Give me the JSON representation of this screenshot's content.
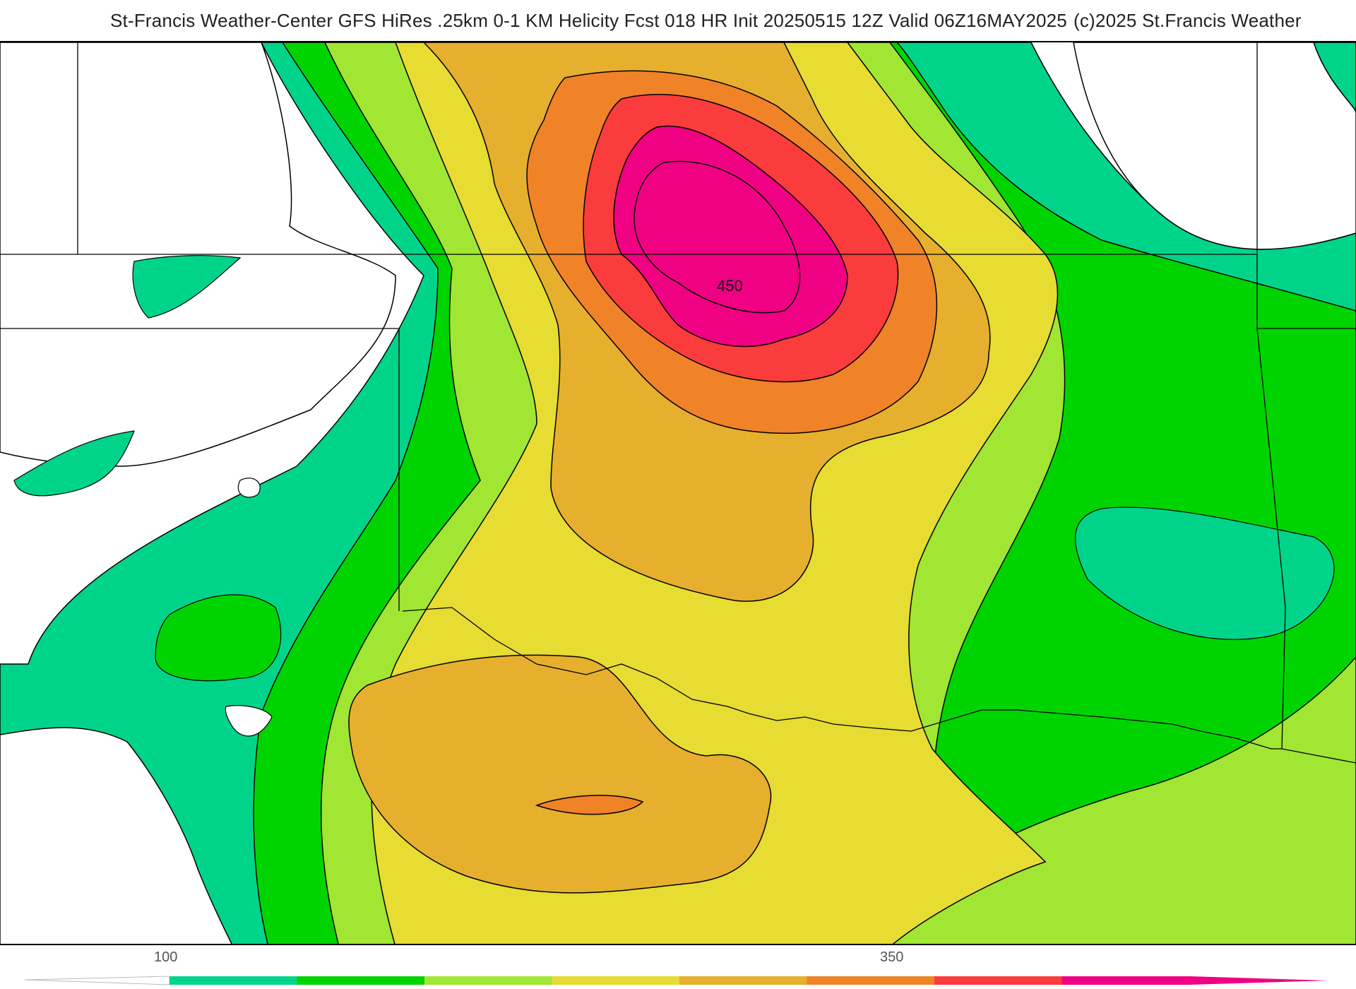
{
  "header": {
    "title": "St-Francis Weather-Center GFS HiRes .25km 0-1 KM Helicity Fcst 018 HR Init 20250515 12Z  Valid 06Z16MAY2025",
    "copyright": "(c)2025 St.Francis Weather"
  },
  "map": {
    "contour_label": "450",
    "colors": {
      "background": "#ffffff",
      "band_1": "#00d48a",
      "band_2": "#00d400",
      "band_3": "#a0e632",
      "band_4": "#e6dc32",
      "band_5": "#e6af2d",
      "band_6": "#f08228",
      "band_7": "#fa3c3c",
      "band_8": "#f00082"
    }
  },
  "colorbar": {
    "tick_labels": [
      "100",
      "350"
    ],
    "colors": [
      "#00d48a",
      "#00d400",
      "#a0e632",
      "#e6dc32",
      "#e6af2d",
      "#f08228",
      "#fa3c3c",
      "#f00082"
    ]
  }
}
